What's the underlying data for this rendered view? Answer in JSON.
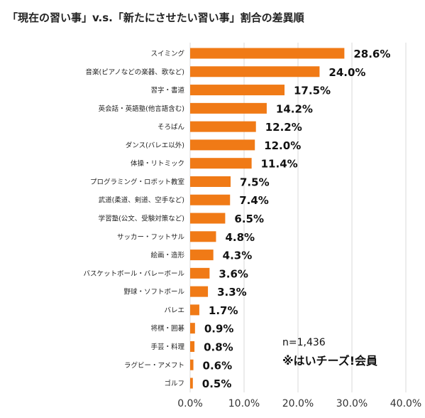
{
  "chart_data": {
    "type": "bar",
    "orientation": "horizontal",
    "title": "「現在の習い事」v.s.「新たにさせたい習い事」割合の差異順",
    "categories": [
      "スイミング",
      "音楽(ピアノなどの楽器、歌など)",
      "習字・書道",
      "英会話・英語塾(他言語含む)",
      "そろばん",
      "ダンス(バレエ以外)",
      "体操・リトミック",
      "プログラミング・ロボット教室",
      "武道(柔道、剣道、空手など)",
      "学習塾(公文、受験対策など)",
      "サッカー・フットサル",
      "絵画・造形",
      "バスケットボール・バレーボール",
      "野球・ソフトボール",
      "バレエ",
      "将棋・囲碁",
      "手芸・料理",
      "ラグビー・アメフト",
      "ゴルフ"
    ],
    "values": [
      28.6,
      24.0,
      17.5,
      14.2,
      12.2,
      12.0,
      11.4,
      7.5,
      7.4,
      6.5,
      4.8,
      4.3,
      3.6,
      3.3,
      1.7,
      0.9,
      0.8,
      0.6,
      0.5
    ],
    "value_labels": [
      "28.6%",
      "24.0%",
      "17.5%",
      "14.2%",
      "12.2%",
      "12.0%",
      "11.4%",
      "7.5%",
      "7.4%",
      "6.5%",
      "4.8%",
      "4.3%",
      "3.6%",
      "3.3%",
      "1.7%",
      "0.9%",
      "0.8%",
      "0.6%",
      "0.5%"
    ],
    "xlim": [
      0,
      40
    ],
    "x_ticks": [
      0,
      10,
      20,
      30,
      40
    ],
    "x_tick_labels": [
      "0.0%",
      "10.0%",
      "20.0%",
      "30.0%",
      "40.0%"
    ],
    "grid": true,
    "bar_color": "#f07a16",
    "annotations": [
      "n=1,436",
      "※はいチーズ!会員"
    ]
  }
}
